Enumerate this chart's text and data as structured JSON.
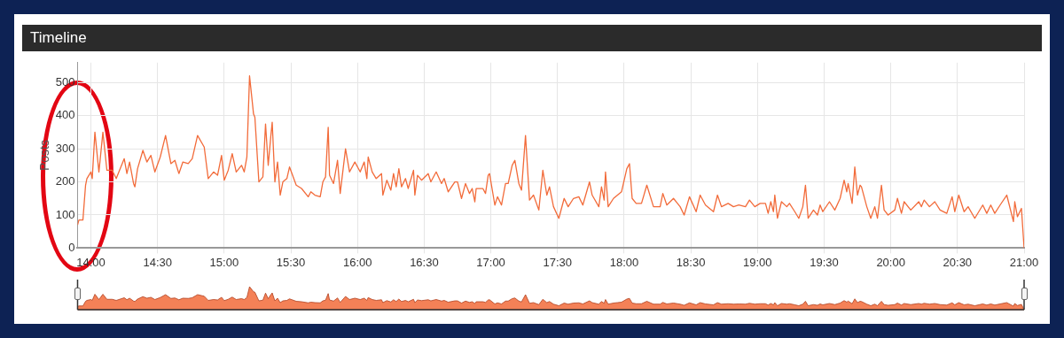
{
  "chart_data": {
    "type": "line",
    "title": "Timeline",
    "ylabel": "Posts",
    "xlim": [
      13.9,
      21.0
    ],
    "xticks": [
      {
        "value": 14,
        "label": "14:00"
      },
      {
        "value": 14.5,
        "label": "14:30"
      },
      {
        "value": 15,
        "label": "15:00"
      },
      {
        "value": 15.5,
        "label": "15:30"
      },
      {
        "value": 16,
        "label": "16:00"
      },
      {
        "value": 16.5,
        "label": "16:30"
      },
      {
        "value": 17,
        "label": "17:00"
      },
      {
        "value": 17.5,
        "label": "17:30"
      },
      {
        "value": 18,
        "label": "18:00"
      },
      {
        "value": 18.5,
        "label": "18:30"
      },
      {
        "value": 19,
        "label": "19:00"
      },
      {
        "value": 19.5,
        "label": "19:30"
      },
      {
        "value": 20,
        "label": "20:00"
      },
      {
        "value": 20.5,
        "label": "20:30"
      },
      {
        "value": 21,
        "label": "21:00"
      }
    ],
    "ylim": [
      0,
      560
    ],
    "yticks": [
      0,
      100,
      200,
      300,
      400,
      500
    ],
    "grid": true,
    "legend": false,
    "marker": "none",
    "line_style": "solid",
    "series": [
      {
        "color": "#f26b3a",
        "x": [
          13.9,
          13.91,
          13.94,
          13.96,
          13.97,
          14.0,
          14.01,
          14.03,
          14.06,
          14.09,
          14.12,
          14.16,
          14.19,
          14.25,
          14.27,
          14.29,
          14.32,
          14.33,
          14.35,
          14.39,
          14.42,
          14.45,
          14.48,
          14.52,
          14.56,
          14.6,
          14.63,
          14.66,
          14.69,
          14.73,
          14.76,
          14.8,
          14.85,
          14.88,
          14.92,
          14.95,
          14.98,
          15.0,
          15.03,
          15.06,
          15.09,
          15.13,
          15.15,
          15.17,
          15.19,
          15.22,
          15.23,
          15.26,
          15.29,
          15.31,
          15.33,
          15.35,
          15.36,
          15.38,
          15.4,
          15.42,
          15.44,
          15.47,
          15.49,
          15.54,
          15.58,
          15.63,
          15.65,
          15.68,
          15.72,
          15.74,
          15.76,
          15.78,
          15.79,
          15.82,
          15.85,
          15.87,
          15.91,
          15.94,
          15.98,
          16.02,
          16.05,
          16.07,
          16.08,
          16.11,
          16.14,
          16.18,
          16.19,
          16.22,
          16.25,
          16.27,
          16.29,
          16.31,
          16.33,
          16.36,
          16.38,
          16.42,
          16.43,
          16.45,
          16.48,
          16.53,
          16.55,
          16.59,
          16.63,
          16.65,
          16.68,
          16.73,
          16.75,
          16.78,
          16.81,
          16.84,
          16.86,
          16.88,
          16.89,
          16.94,
          16.96,
          16.98,
          16.99,
          17.03,
          17.05,
          17.08,
          17.11,
          17.13,
          17.16,
          17.18,
          17.21,
          17.23,
          17.26,
          17.29,
          17.32,
          17.36,
          17.39,
          17.42,
          17.44,
          17.47,
          17.51,
          17.55,
          17.58,
          17.62,
          17.66,
          17.69,
          17.74,
          17.76,
          17.81,
          17.83,
          17.85,
          17.86,
          17.88,
          17.92,
          17.95,
          17.98,
          18.02,
          18.04,
          18.06,
          18.09,
          18.13,
          18.17,
          18.22,
          18.27,
          18.29,
          18.32,
          18.37,
          18.42,
          18.45,
          18.49,
          18.54,
          18.57,
          18.61,
          18.67,
          18.7,
          18.73,
          18.78,
          18.82,
          18.86,
          18.91,
          18.94,
          18.98,
          19.02,
          19.06,
          19.08,
          19.1,
          19.12,
          19.13,
          19.15,
          19.18,
          19.22,
          19.24,
          19.28,
          19.31,
          19.34,
          19.36,
          19.38,
          19.42,
          19.45,
          19.47,
          19.49,
          19.54,
          19.58,
          19.62,
          19.65,
          19.67,
          19.68,
          19.71,
          19.73,
          19.75,
          19.77,
          19.78,
          19.82,
          19.85,
          19.88,
          19.9,
          19.93,
          19.95,
          19.98,
          20.03,
          20.05,
          20.08,
          20.1,
          20.15,
          20.21,
          20.23,
          20.25,
          20.29,
          20.33,
          20.37,
          20.42,
          20.46,
          20.48,
          20.51,
          20.55,
          20.58,
          20.63,
          20.69,
          20.72,
          20.75,
          20.78,
          20.82,
          20.87,
          20.92,
          20.93,
          20.95,
          20.98,
          21.0
        ],
        "values": [
          70,
          85,
          85,
          190,
          210,
          230,
          210,
          350,
          230,
          350,
          235,
          235,
          210,
          270,
          225,
          260,
          195,
          185,
          240,
          295,
          260,
          280,
          230,
          275,
          340,
          255,
          265,
          225,
          260,
          255,
          270,
          340,
          305,
          210,
          230,
          220,
          280,
          205,
          235,
          285,
          230,
          250,
          230,
          275,
          520,
          405,
          395,
          200,
          215,
          375,
          250,
          340,
          380,
          200,
          260,
          160,
          200,
          210,
          245,
          190,
          180,
          155,
          170,
          160,
          155,
          200,
          215,
          365,
          220,
          195,
          265,
          165,
          300,
          230,
          260,
          230,
          260,
          210,
          275,
          230,
          210,
          225,
          160,
          205,
          175,
          225,
          185,
          240,
          185,
          210,
          180,
          235,
          160,
          220,
          205,
          225,
          200,
          230,
          195,
          210,
          170,
          200,
          200,
          150,
          195,
          165,
          180,
          140,
          180,
          180,
          165,
          220,
          225,
          130,
          155,
          130,
          195,
          195,
          250,
          265,
          195,
          175,
          340,
          145,
          160,
          115,
          235,
          160,
          185,
          125,
          90,
          150,
          125,
          150,
          155,
          130,
          200,
          160,
          125,
          185,
          145,
          230,
          125,
          150,
          160,
          170,
          240,
          255,
          150,
          135,
          135,
          190,
          125,
          125,
          165,
          130,
          150,
          125,
          100,
          155,
          110,
          160,
          130,
          110,
          160,
          125,
          135,
          125,
          130,
          125,
          145,
          125,
          135,
          135,
          105,
          140,
          110,
          160,
          90,
          140,
          125,
          135,
          110,
          90,
          125,
          190,
          90,
          115,
          100,
          130,
          110,
          140,
          115,
          150,
          205,
          170,
          195,
          135,
          245,
          160,
          190,
          185,
          125,
          90,
          125,
          90,
          190,
          115,
          100,
          115,
          150,
          105,
          140,
          115,
          140,
          125,
          145,
          125,
          140,
          115,
          105,
          155,
          110,
          160,
          110,
          125,
          90,
          130,
          105,
          130,
          105,
          130,
          160,
          80,
          140,
          95,
          120,
          0
        ]
      }
    ]
  }
}
